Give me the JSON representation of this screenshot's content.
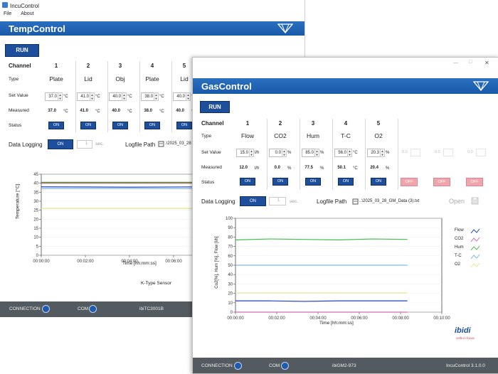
{
  "temp": {
    "title": "IncuControl",
    "menu": [
      "File",
      "About"
    ],
    "banner": "TempControl",
    "run": "RUN",
    "row_labels": {
      "channel": "Channel",
      "type": "Type",
      "set": "Set Value",
      "measured": "Measured",
      "status": "Status"
    },
    "channels": [
      {
        "num": "1",
        "type": "Plate",
        "set": "37.0",
        "unit": "°C",
        "measured": "37.0",
        "status": "ON"
      },
      {
        "num": "2",
        "type": "Lid",
        "set": "41.0",
        "unit": "°C",
        "measured": "41.0",
        "status": "ON"
      },
      {
        "num": "3",
        "type": "Obj",
        "set": "40.0",
        "unit": "°C",
        "measured": "40.0",
        "status": "ON"
      },
      {
        "num": "4",
        "type": "Plate",
        "set": "38.0",
        "unit": "°C",
        "measured": "38.0",
        "status": "ON"
      },
      {
        "num": "5",
        "type": "Lid",
        "set": "40.0",
        "unit": "°C",
        "measured": "40.0",
        "status": "ON"
      }
    ],
    "logging": {
      "label": "Data Logging",
      "button": "ON",
      "interval": "1",
      "interval_unit": "sec.",
      "path_label": "Logfile Path",
      "path": ".\\2025_03_28"
    },
    "chart_data": {
      "type": "line",
      "ylabel": "Temperature [°C]",
      "xlabel": "Time [hh:mm:ss]",
      "ylim": [
        0,
        45
      ],
      "yticks": [
        0,
        5,
        10,
        15,
        20,
        25,
        30,
        35,
        40,
        45
      ],
      "xticks": [
        "00:00:00",
        "00:02:00",
        "00:04:00",
        "00:06:00"
      ],
      "series": [
        {
          "color": "#3fa34d",
          "values": [
            40.5,
            40.5,
            40.5,
            40.5
          ]
        },
        {
          "color": "#c0504d",
          "values": [
            40.0,
            40.0,
            40.0,
            40.0
          ]
        },
        {
          "color": "#1f3fbf",
          "values": [
            38.0,
            37.8,
            38.0,
            38.0
          ]
        },
        {
          "color": "#7fb6e8",
          "values": [
            37.0,
            37.0,
            37.0,
            37.0
          ]
        },
        {
          "color": "#e8e38a",
          "values": [
            26.0,
            26.0,
            26.0,
            26.0
          ]
        }
      ]
    },
    "sensor": "K-Type Sensor",
    "footer": {
      "connection": "CONNECTION",
      "com": "COM",
      "device": "ibiTC3001B"
    }
  },
  "gas": {
    "banner": "GasControl",
    "run": "RUN",
    "row_labels": {
      "channel": "Channel",
      "type": "Type",
      "set": "Set Value",
      "measured": "Measured",
      "status": "Status"
    },
    "channels": [
      {
        "num": "1",
        "type": "Flow",
        "set": "15.0",
        "unit": "l/h",
        "measured": "12.0",
        "munit": "l/h",
        "status": "ON"
      },
      {
        "num": "2",
        "type": "CO2",
        "set": "0.0",
        "unit": "%",
        "measured": "0.0",
        "munit": "%",
        "status": "ON"
      },
      {
        "num": "3",
        "type": "Hum",
        "set": "85.0",
        "unit": "%",
        "measured": "77.5",
        "munit": "%",
        "status": "ON"
      },
      {
        "num": "4",
        "type": "T-C",
        "set": "56.0",
        "unit": "°C",
        "measured": "50.1",
        "munit": "°C",
        "status": "ON"
      },
      {
        "num": "5",
        "type": "O2",
        "set": "20.3",
        "unit": "%",
        "measured": "20.4",
        "munit": "%",
        "status": "ON"
      }
    ],
    "disabled": [
      {
        "set": "0.0",
        "status": "OFF"
      },
      {
        "set": "0.0",
        "status": "OFF"
      },
      {
        "set": "0.0",
        "status": "OFF"
      }
    ],
    "logging": {
      "label": "Data Logging",
      "button": "ON",
      "interval": "1",
      "interval_unit": "sec.",
      "path_label": "Logfile Path",
      "path": "..\\2025_03_28_GM_Data (3).txt",
      "open": "Open"
    },
    "chart_data": {
      "type": "line",
      "ylabel": "Co2[%], Hum [%], Flow [l/h]",
      "xlabel": "Time [hh:mm:ss]",
      "ylim": [
        0,
        100
      ],
      "yticks": [
        0,
        10,
        20,
        30,
        40,
        50,
        60,
        70,
        80,
        90,
        100
      ],
      "xticks": [
        "00:00:00",
        "00:02:00",
        "00:04:00",
        "00:06:00",
        "00:08:00",
        "00:10:00"
      ],
      "xlim_seconds": [
        0,
        600
      ],
      "series": [
        {
          "name": "Flow",
          "color": "#1f3fbf",
          "x": [
            0,
            100,
            200,
            300,
            400,
            500
          ],
          "values": [
            12,
            12,
            11.5,
            12,
            12,
            12
          ]
        },
        {
          "name": "CO2",
          "color": "#d26ab5",
          "x": [
            0,
            100,
            200,
            300,
            400,
            500
          ],
          "values": [
            0,
            0,
            0,
            0,
            0,
            0
          ]
        },
        {
          "name": "Hum",
          "color": "#3fbf4a",
          "x": [
            0,
            100,
            200,
            300,
            400,
            500
          ],
          "values": [
            77,
            78,
            77.5,
            77,
            78,
            77.5
          ]
        },
        {
          "name": "T-C",
          "color": "#7fb6e8",
          "x": [
            0,
            100,
            200,
            300,
            400,
            500
          ],
          "values": [
            50,
            50,
            50,
            50,
            50,
            50
          ]
        },
        {
          "name": "O2",
          "color": "#e8e38a",
          "x": [
            0,
            100,
            200,
            300,
            400,
            500
          ],
          "values": [
            20.5,
            20.5,
            20.5,
            20.5,
            20.5,
            20.5
          ]
        }
      ]
    },
    "brand": {
      "name": "ibidi",
      "tagline": "cells in focus"
    },
    "window_controls": [
      "—",
      "□",
      "✕"
    ],
    "footer": {
      "connection": "CONNECTION",
      "com": "COM",
      "device": "ibiGM2-973",
      "version": "IncuControl 3.1.0.0"
    }
  }
}
